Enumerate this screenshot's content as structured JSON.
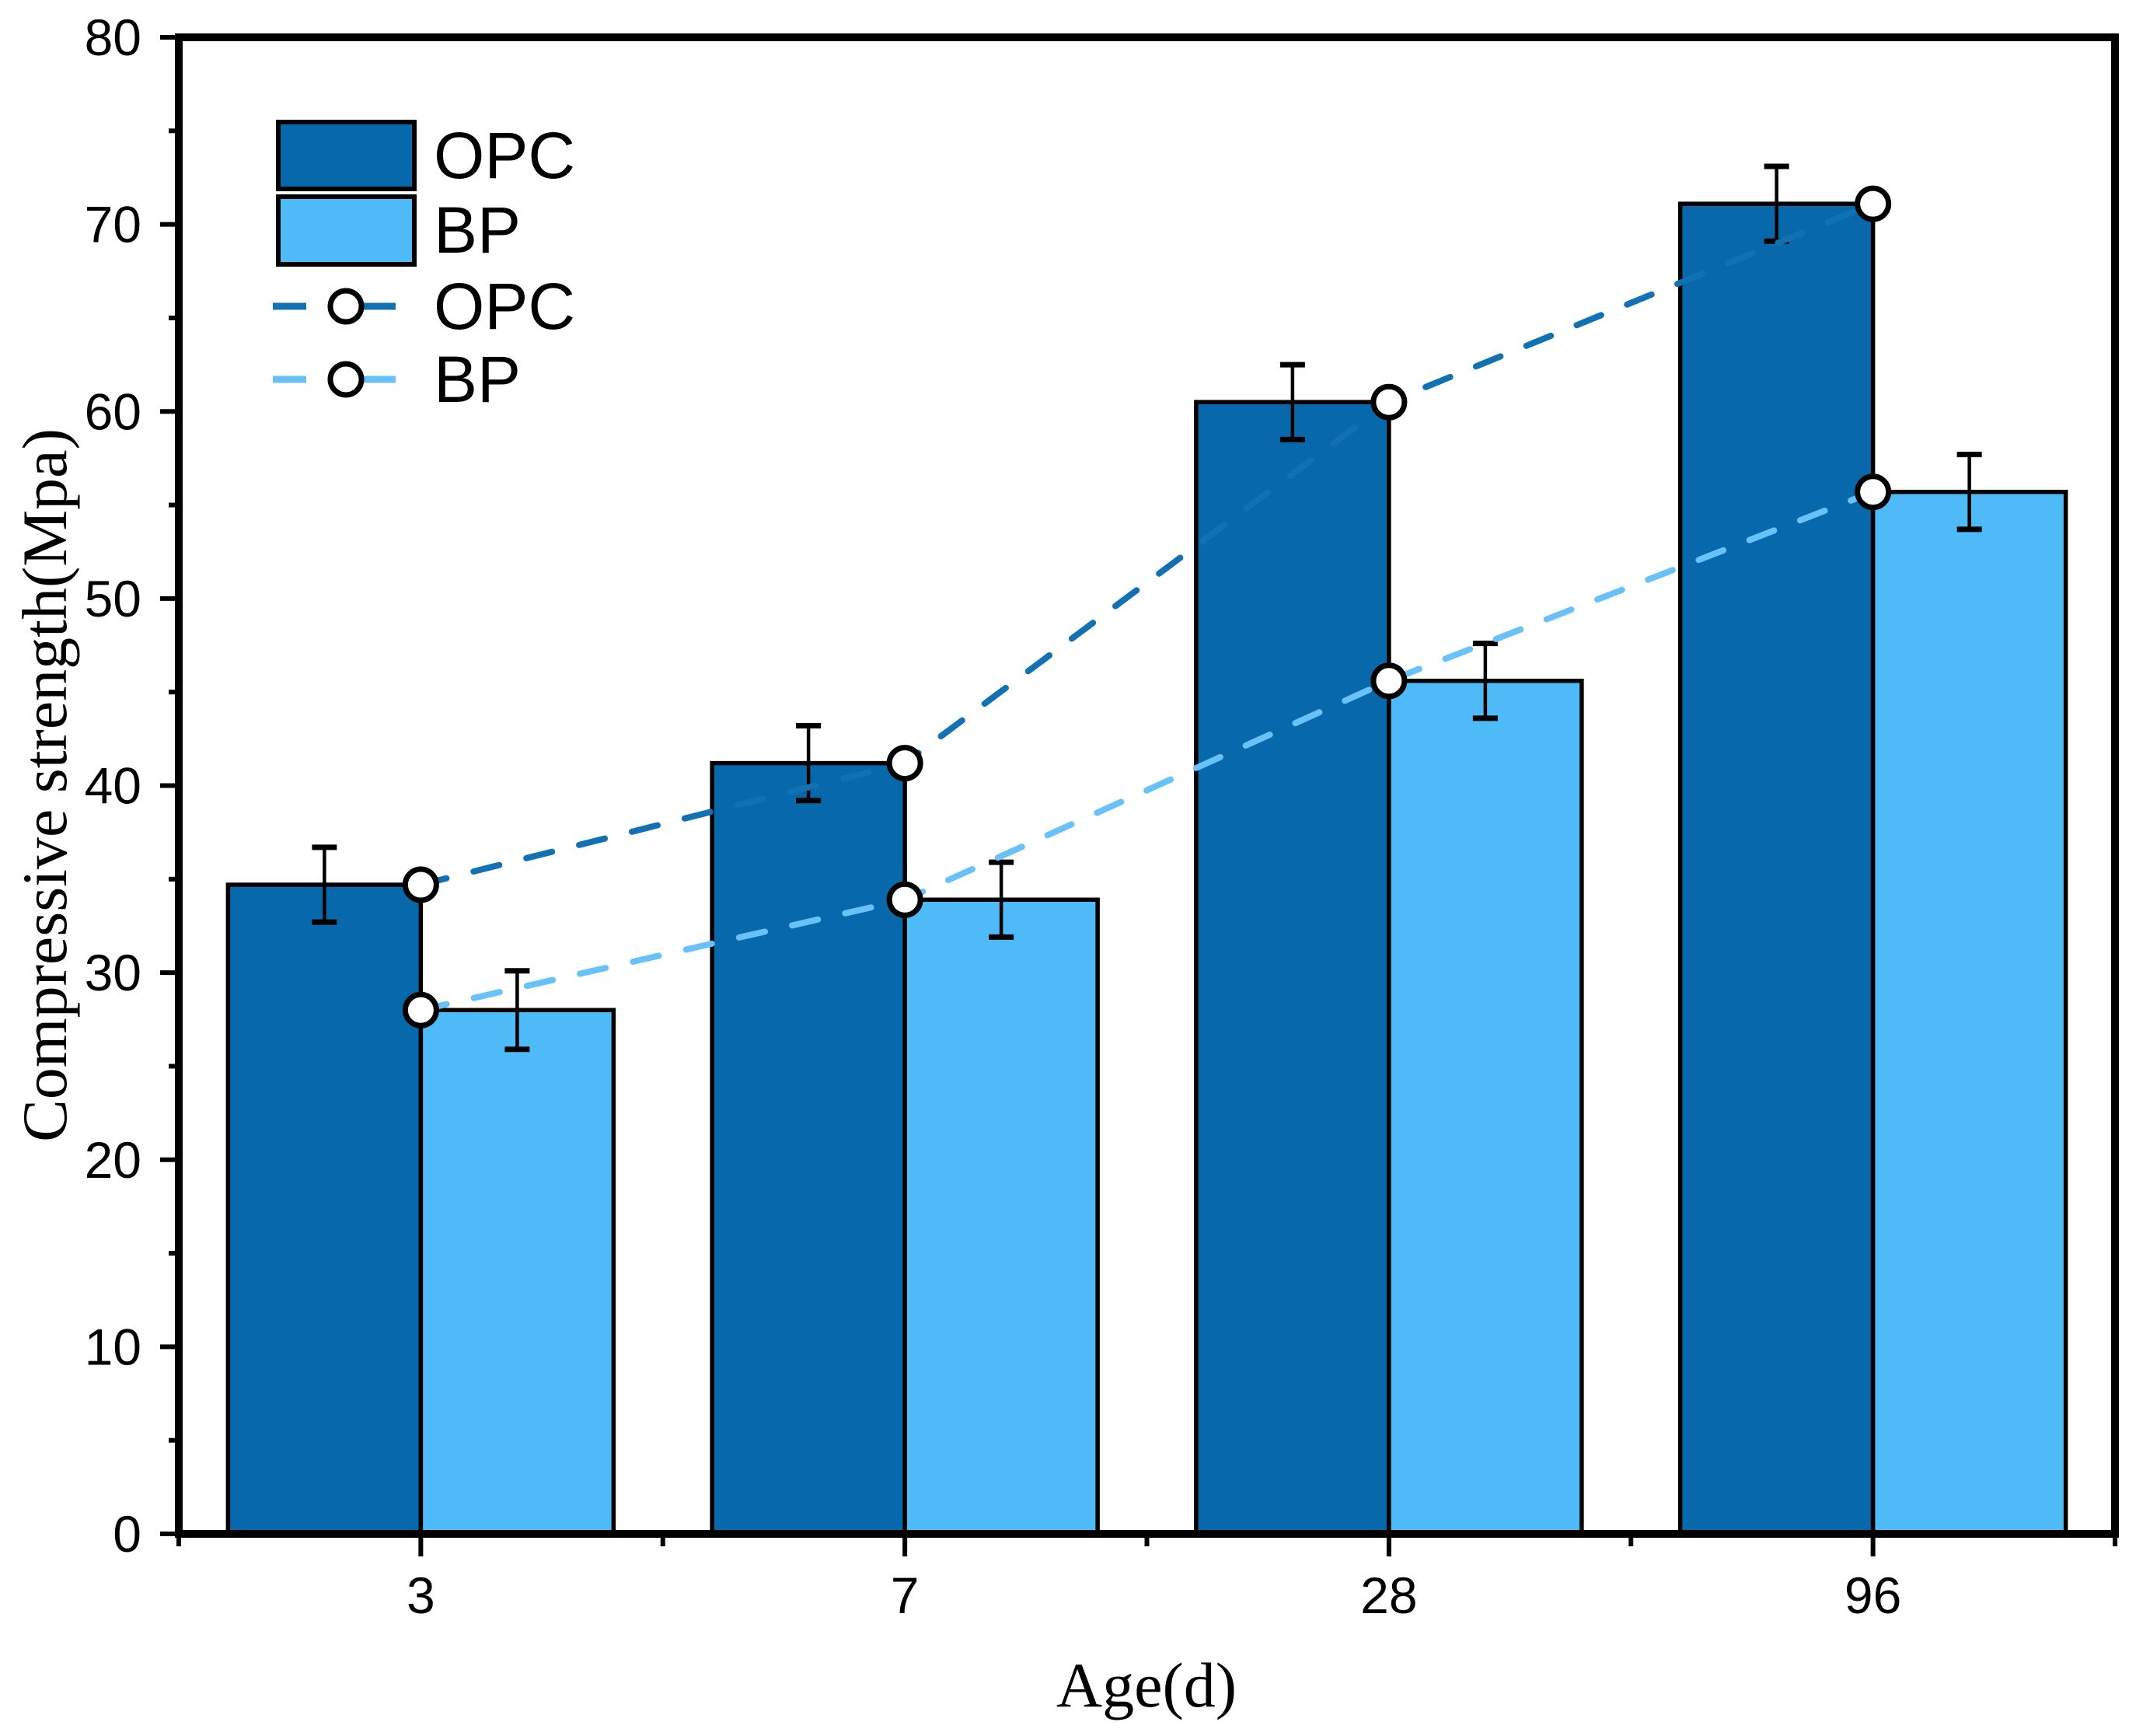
{
  "chart_data": {
    "type": "bar",
    "subtype": "grouped-bars-with-dashed-marker-lines",
    "title": "",
    "xlabel": "Age(d)",
    "ylabel": "Compressive strength(Mpa)",
    "categories": [
      "3",
      "7",
      "28",
      "96"
    ],
    "bar_series": [
      {
        "name": "OPC",
        "color": "#0768AB",
        "values": [
          34.7,
          41.2,
          60.5,
          71.1
        ],
        "errors": [
          2.0,
          2.0,
          2.0,
          2.0
        ]
      },
      {
        "name": "BP",
        "color": "#4EBAF8",
        "values": [
          28.0,
          33.9,
          45.6,
          55.7
        ],
        "errors": [
          2.1,
          2.0,
          2.0,
          2.0
        ]
      }
    ],
    "line_series": [
      {
        "name": "OPC",
        "color": "#1271B3",
        "values": [
          34.7,
          41.2,
          60.5,
          71.1
        ]
      },
      {
        "name": "BP",
        "color": "#69C1F9",
        "values": [
          28.0,
          33.9,
          45.6,
          55.7
        ]
      }
    ],
    "marker": {
      "shape": "open-circle",
      "fill": "#ffffff",
      "ring_color": "#000000"
    },
    "ylim": [
      0,
      80
    ],
    "y_major_step": 10,
    "y_minor_step": 5,
    "grid": false,
    "legend_position": "top-left",
    "axis_color": "#000000",
    "error_bar_color": "#000000"
  },
  "legend": {
    "entries": [
      {
        "type": "bar",
        "label": "OPC"
      },
      {
        "type": "bar",
        "label": "BP"
      },
      {
        "type": "line",
        "label": "OPC"
      },
      {
        "type": "line",
        "label": "BP"
      }
    ]
  }
}
